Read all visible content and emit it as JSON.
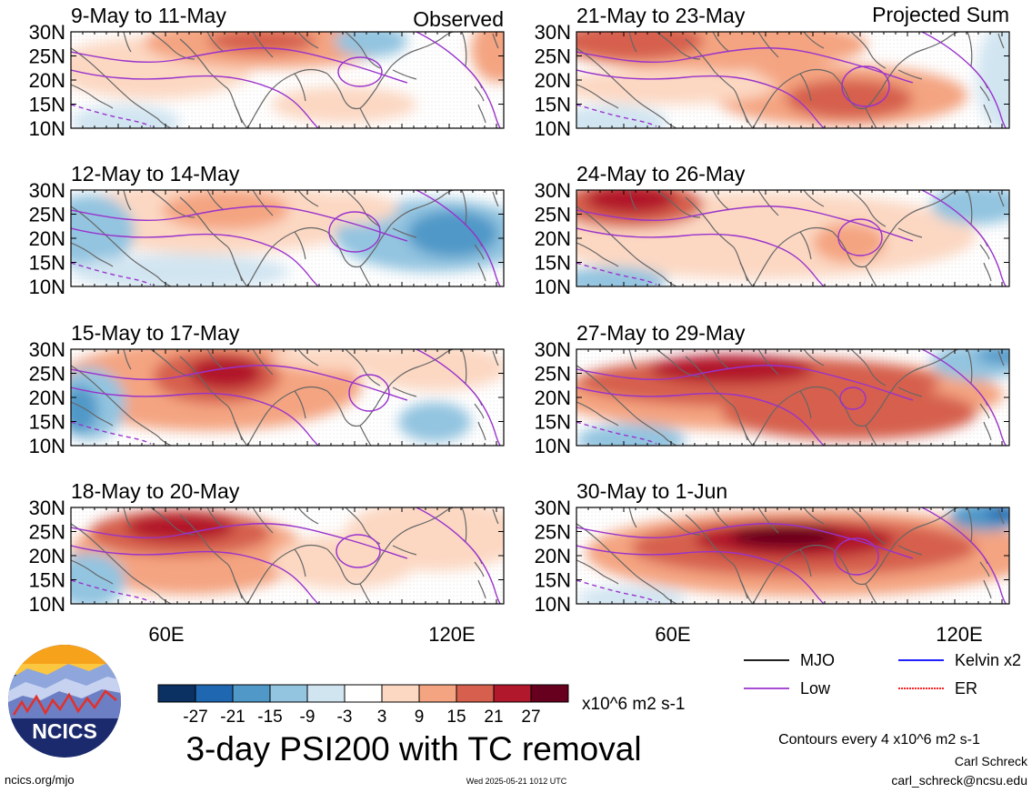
{
  "figure": {
    "title": "3-day PSI200 with TC removal",
    "units": "x10^6 m2 s-1",
    "contour_note": "Contours every 4 x10^6 m2 s-1",
    "author": "Carl Schreck",
    "email": "carl_schreck@ncsu.edu",
    "website": "ncics.org/mjo",
    "timestamp": "Wed 2025-05-21 1012 UTC",
    "logo_text": "NCICS",
    "column_labels": {
      "left": "Observed",
      "right": "Projected Sum"
    }
  },
  "axes": {
    "lat_ticks": [
      "30N",
      "25N",
      "20N",
      "15N",
      "10N"
    ],
    "lon_ticks": [
      "60E",
      "120E"
    ]
  },
  "colorbar": {
    "labels": [
      "-27",
      "-21",
      "-15",
      "-9",
      "-3",
      "3",
      "9",
      "15",
      "21",
      "27"
    ],
    "colors": [
      "#0a3161",
      "#1f67b0",
      "#4f98c8",
      "#93c4e0",
      "#d1e5f1",
      "#ffffff",
      "#fcd8c3",
      "#f4a481",
      "#d6604d",
      "#b2182b",
      "#67001f"
    ]
  },
  "legend": [
    {
      "label": "MJO",
      "color": "#000000"
    },
    {
      "label": "Low",
      "color": "#9932cc"
    },
    {
      "label": "Kelvin x2",
      "color": "#0000ff"
    },
    {
      "label": "ER",
      "color": "#ff0000"
    }
  ],
  "panels": [
    {
      "label": "9-May to 11-May"
    },
    {
      "label": "21-May to 23-May"
    },
    {
      "label": "12-May to 14-May"
    },
    {
      "label": "24-May to 26-May"
    },
    {
      "label": "15-May to 17-May"
    },
    {
      "label": "27-May to 29-May"
    },
    {
      "label": "18-May to 20-May"
    },
    {
      "label": "30-May to 1-Jun"
    }
  ]
}
